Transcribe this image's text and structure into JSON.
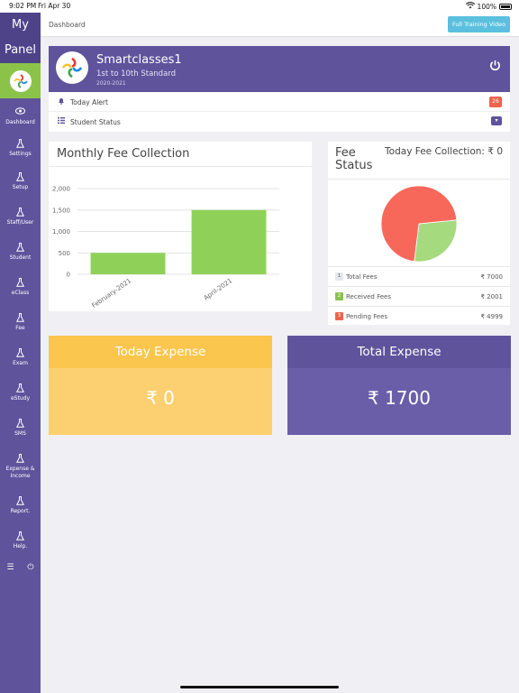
{
  "status_bar": {
    "time": "9:02 PM",
    "date": "Fri Apr 30",
    "battery": "100%"
  },
  "sidebar": {
    "title_line1": "My",
    "title_line2": "Panel",
    "items": [
      {
        "label": "Dashboard",
        "icon": "eye-icon"
      },
      {
        "label": "Settings",
        "icon": "flask-icon"
      },
      {
        "label": "Setup",
        "icon": "flask-icon"
      },
      {
        "label": "Staff/User",
        "icon": "flask-icon"
      },
      {
        "label": "Student",
        "icon": "flask-icon"
      },
      {
        "label": "eClass",
        "icon": "flask-icon"
      },
      {
        "label": "Fee",
        "icon": "flask-icon"
      },
      {
        "label": "Exam",
        "icon": "flask-icon"
      },
      {
        "label": "eStudy",
        "icon": "flask-icon"
      },
      {
        "label": "SMS",
        "icon": "flask-icon"
      },
      {
        "label": "Expense &",
        "label2": "Income",
        "icon": "flask-icon"
      },
      {
        "label": "Report.",
        "icon": "flask-icon"
      },
      {
        "label": "Help.",
        "icon": "flask-icon"
      }
    ]
  },
  "header": {
    "breadcrumb": "Dashboard",
    "training_button": "Full Training Video"
  },
  "school": {
    "name": "Smartclasses1",
    "standard": "1st to 10th Standard",
    "session": "2020-2021"
  },
  "alerts": {
    "today_alert_label": "Today Alert",
    "today_alert_count": "26",
    "student_status_label": "Student Status"
  },
  "monthly_fee": {
    "title": "Monthly Fee Collection"
  },
  "chart_data": {
    "type": "bar",
    "categories": [
      "February-2021",
      "April-2021"
    ],
    "values": [
      500,
      1500
    ],
    "ylim": [
      0,
      2000
    ],
    "yticks": [
      "2,000",
      "1,500",
      "1,000",
      "500",
      "0"
    ],
    "title": "",
    "xlabel": "",
    "ylabel": "",
    "bar_color": "#8fd158",
    "grid": true
  },
  "fee_status": {
    "title": "Fee Status",
    "today_collection_label": "Today Fee Collection:",
    "today_collection_value": "₹ 0",
    "pie": [
      {
        "name": "Received Fees",
        "value": 2001,
        "color": "#a5da7e"
      },
      {
        "name": "Pending Fees",
        "value": 4999,
        "color": "#f8685a"
      }
    ],
    "rows": [
      {
        "num": "1",
        "label": "Total Fees",
        "amount": "₹ 7000",
        "color": "#d9d9e3",
        "num_color": "#555"
      },
      {
        "num": "2",
        "label": "Received Fees",
        "amount": "₹ 2001",
        "color": "#8bc34a",
        "num_color": "#fff"
      },
      {
        "num": "3",
        "label": "Pending Fees",
        "amount": "₹ 4999",
        "color": "#f0624d",
        "num_color": "#fff"
      }
    ]
  },
  "expenses": {
    "today_title": "Today Expense",
    "today_value": "₹ 0",
    "total_title": "Total Expense",
    "total_value": "₹ 1700"
  }
}
